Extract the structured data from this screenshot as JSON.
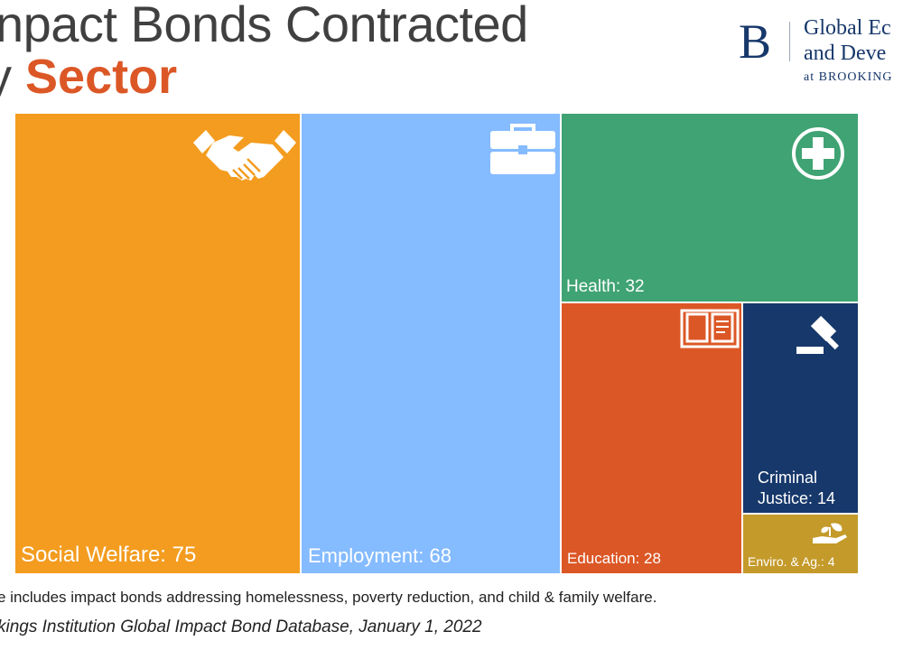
{
  "title": {
    "line1": "npact Bonds Contracted",
    "line2_prefix": "y",
    "line2_highlight": "Sector"
  },
  "logo": {
    "letter": "B",
    "line1": "Global Ec",
    "line2": "and Deve",
    "line3": "at BROOKING"
  },
  "chart_data": {
    "type": "treemap",
    "items": [
      {
        "name": "Social Welfare",
        "value": 75,
        "label": "Social Welfare: 75",
        "color": "#F39C1F",
        "icon": "handshake-icon"
      },
      {
        "name": "Employment",
        "value": 68,
        "label": "Employment: 68",
        "color": "#85BBFF",
        "icon": "briefcase-icon"
      },
      {
        "name": "Health",
        "value": 32,
        "label": "Health: 32",
        "color": "#3FA373",
        "icon": "medical-cross-icon"
      },
      {
        "name": "Education",
        "value": 28,
        "label": "Education: 28",
        "color": "#DC5726",
        "icon": "book-icon"
      },
      {
        "name": "Criminal Justice",
        "value": 14,
        "label_line1": "Criminal",
        "label_line2": "Justice: 14",
        "color": "#17386B",
        "icon": "gavel-icon"
      },
      {
        "name": "Enviro. & Ag.",
        "value": 4,
        "label": "Enviro. & Ag.: 4",
        "color": "#C49A2A",
        "icon": "plant-hand-icon"
      }
    ]
  },
  "footer": {
    "note": "e includes impact bonds addressing homelessness, poverty reduction, and child & family welfare.",
    "source": "kings Institution Global Impact Bond Database, January 1, 2022"
  }
}
